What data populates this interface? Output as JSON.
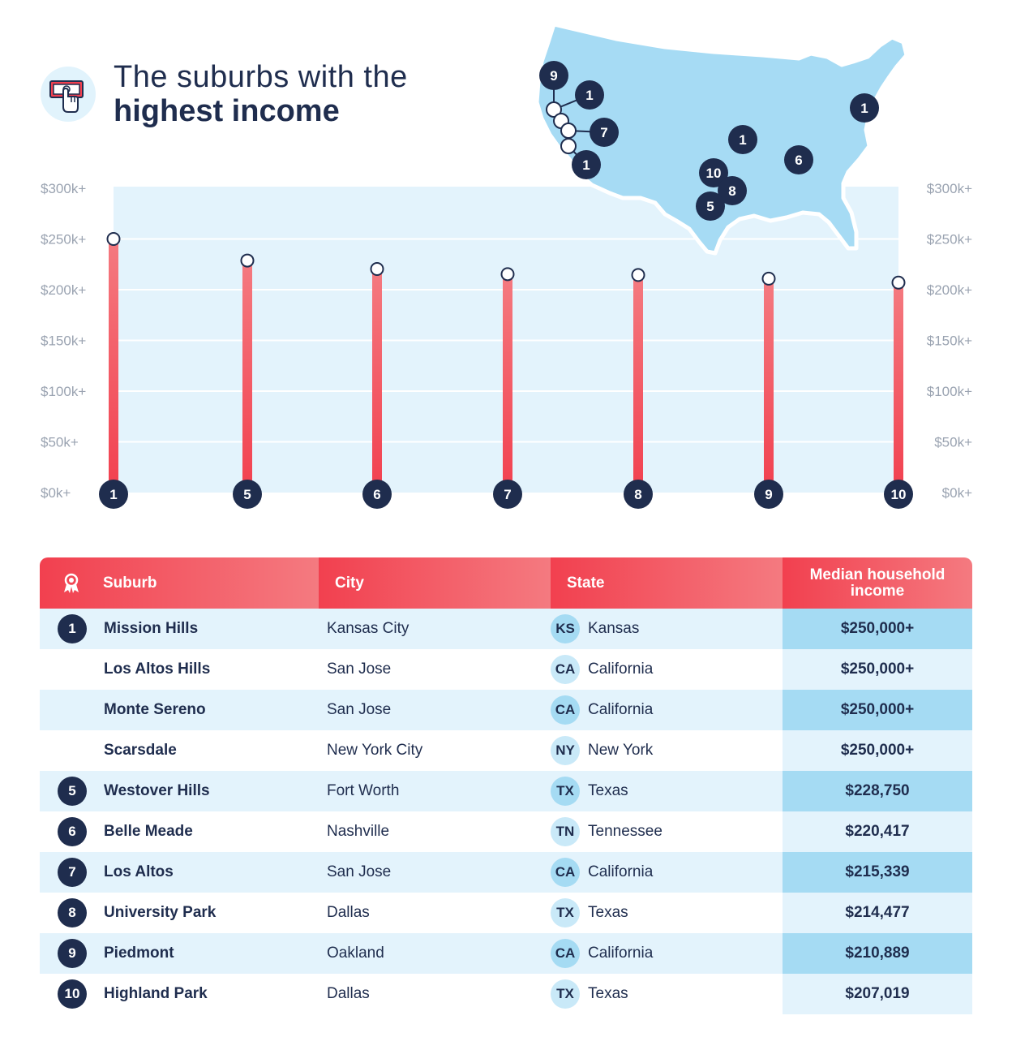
{
  "title": {
    "line1": "The suburbs with the",
    "line2": "highest income"
  },
  "icon": "money-hand-icon",
  "colors": {
    "navy": "#1f2d4e",
    "red": "#f2404f",
    "light_blue": "#e3f3fc",
    "mid_blue": "#a5dbf3",
    "map_blue": "#a6dbf4"
  },
  "chart_data": {
    "type": "lollipop",
    "categories": [
      "1",
      "5",
      "6",
      "7",
      "8",
      "9",
      "10"
    ],
    "values": [
      250000,
      228750,
      220417,
      215339,
      214477,
      210889,
      207019
    ],
    "ylim": [
      0,
      300000
    ],
    "yticks": [
      "$0k+",
      "$50k+",
      "$100k+",
      "$150k+",
      "$200k+",
      "$250k+",
      "$300k+"
    ],
    "yvalues": [
      0,
      50000,
      100000,
      150000,
      200000,
      250000,
      300000
    ],
    "grid": true
  },
  "map": {
    "icon": "usa-map",
    "markers": [
      "9",
      "1",
      "7",
      "1",
      "1",
      "1",
      "6",
      "10",
      "8",
      "5"
    ]
  },
  "table": {
    "headers": {
      "rank_icon": "award-icon",
      "suburb": "Suburb",
      "city": "City",
      "state": "State",
      "income": "Median household income"
    },
    "rows": [
      {
        "rank": "1",
        "suburb": "Mission Hills",
        "city": "Kansas City",
        "abbr": "KS",
        "state": "Kansas",
        "income": "$250,000+"
      },
      {
        "rank": "",
        "suburb": "Los Altos Hills",
        "city": "San Jose",
        "abbr": "CA",
        "state": "California",
        "income": "$250,000+"
      },
      {
        "rank": "",
        "suburb": "Monte Sereno",
        "city": "San Jose",
        "abbr": "CA",
        "state": "California",
        "income": "$250,000+"
      },
      {
        "rank": "",
        "suburb": "Scarsdale",
        "city": "New York City",
        "abbr": "NY",
        "state": "New York",
        "income": "$250,000+"
      },
      {
        "rank": "5",
        "suburb": "Westover Hills",
        "city": "Fort Worth",
        "abbr": "TX",
        "state": "Texas",
        "income": "$228,750"
      },
      {
        "rank": "6",
        "suburb": "Belle Meade",
        "city": "Nashville",
        "abbr": "TN",
        "state": "Tennessee",
        "income": "$220,417"
      },
      {
        "rank": "7",
        "suburb": "Los Altos",
        "city": "San Jose",
        "abbr": "CA",
        "state": "California",
        "income": "$215,339"
      },
      {
        "rank": "8",
        "suburb": "University Park",
        "city": "Dallas",
        "abbr": "TX",
        "state": "Texas",
        "income": "$214,477"
      },
      {
        "rank": "9",
        "suburb": "Piedmont",
        "city": "Oakland",
        "abbr": "CA",
        "state": "California",
        "income": "$210,889"
      },
      {
        "rank": "10",
        "suburb": "Highland Park",
        "city": "Dallas",
        "abbr": "TX",
        "state": "Texas",
        "income": "$207,019"
      }
    ]
  }
}
